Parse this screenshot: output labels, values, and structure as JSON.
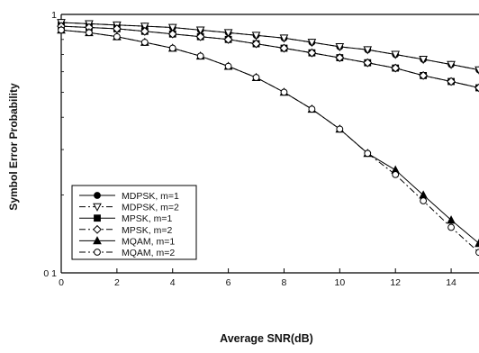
{
  "chart_data": {
    "type": "line",
    "xlabel": "Average SNR(dB)",
    "ylabel": "Symbol Error Probability",
    "x_ticks": [
      0,
      2,
      4,
      6,
      8,
      10,
      12,
      14
    ],
    "x_tick_labels": [
      "0",
      "2",
      "4",
      "6",
      "8",
      "10",
      "12",
      "14"
    ],
    "y_ticks": [
      0.1,
      1
    ],
    "y_tick_labels": [
      "0 1",
      "1"
    ],
    "xlim": [
      0,
      15
    ],
    "ylim": [
      0.1,
      1
    ],
    "y_scale": "log",
    "grid": false,
    "legend_position": "bottom-left",
    "series": [
      {
        "name": "MDPSK, m=1",
        "marker": "filled-circle",
        "dash": "solid",
        "x": [
          0,
          1,
          2,
          3,
          4,
          5,
          6,
          7,
          8,
          9,
          10,
          11,
          12,
          13,
          14,
          15
        ],
        "y": [
          0.93,
          0.92,
          0.91,
          0.9,
          0.89,
          0.87,
          0.85,
          0.83,
          0.81,
          0.78,
          0.75,
          0.73,
          0.7,
          0.67,
          0.64,
          0.61
        ]
      },
      {
        "name": "MDPSK, m=2",
        "marker": "open-triangle-down",
        "dash": "dashdot",
        "x": [
          0,
          1,
          2,
          3,
          4,
          5,
          6,
          7,
          8,
          9,
          10,
          11,
          12,
          13,
          14,
          15
        ],
        "y": [
          0.93,
          0.92,
          0.91,
          0.9,
          0.89,
          0.87,
          0.85,
          0.83,
          0.81,
          0.78,
          0.75,
          0.73,
          0.7,
          0.67,
          0.64,
          0.61
        ]
      },
      {
        "name": "MPSK, m=1",
        "marker": "filled-square",
        "dash": "solid",
        "x": [
          0,
          1,
          2,
          3,
          4,
          5,
          6,
          7,
          8,
          9,
          10,
          11,
          12,
          13,
          14,
          15
        ],
        "y": [
          0.9,
          0.89,
          0.88,
          0.86,
          0.84,
          0.82,
          0.8,
          0.77,
          0.74,
          0.71,
          0.68,
          0.65,
          0.62,
          0.58,
          0.55,
          0.52
        ]
      },
      {
        "name": "MPSK, m=2",
        "marker": "open-diamond",
        "dash": "dashdot",
        "x": [
          0,
          1,
          2,
          3,
          4,
          5,
          6,
          7,
          8,
          9,
          10,
          11,
          12,
          13,
          14,
          15
        ],
        "y": [
          0.9,
          0.89,
          0.88,
          0.86,
          0.84,
          0.82,
          0.8,
          0.77,
          0.74,
          0.71,
          0.68,
          0.65,
          0.62,
          0.58,
          0.55,
          0.52
        ]
      },
      {
        "name": "MQAM, m=1",
        "marker": "filled-triangle-up",
        "dash": "solid",
        "x": [
          0,
          1,
          2,
          3,
          4,
          5,
          6,
          7,
          8,
          9,
          10,
          11,
          12,
          13,
          14,
          15
        ],
        "y": [
          0.87,
          0.85,
          0.82,
          0.78,
          0.74,
          0.69,
          0.63,
          0.57,
          0.5,
          0.43,
          0.36,
          0.29,
          0.25,
          0.2,
          0.16,
          0.13
        ]
      },
      {
        "name": "MQAM, m=2",
        "marker": "open-circle",
        "dash": "dashdot",
        "x": [
          0,
          1,
          2,
          3,
          4,
          5,
          6,
          7,
          8,
          9,
          10,
          11,
          12,
          13,
          14,
          15
        ],
        "y": [
          0.87,
          0.85,
          0.82,
          0.78,
          0.74,
          0.69,
          0.63,
          0.57,
          0.5,
          0.43,
          0.36,
          0.29,
          0.24,
          0.19,
          0.15,
          0.12
        ]
      }
    ]
  }
}
